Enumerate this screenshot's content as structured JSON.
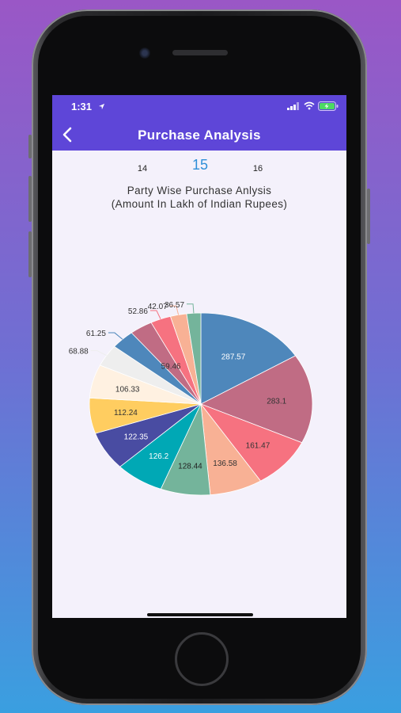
{
  "status_bar": {
    "time": "1:31"
  },
  "header": {
    "title": "Purchase Analysis",
    "back_icon": "chevron-left-icon"
  },
  "selector": {
    "prev": "14",
    "current": "15",
    "next": "16"
  },
  "chart_data": {
    "type": "pie",
    "title": "Party Wise Purchase Anlysis",
    "subtitle": "(Amount In Lakh of Indian Rupees)",
    "values": [
      287.57,
      283.1,
      161.47,
      136.58,
      128.44,
      126.2,
      122.35,
      112.24,
      106.33,
      68.88,
      61.25,
      59.46,
      52.86,
      42.07,
      36.57
    ],
    "labels": [
      "287.57",
      "283.1",
      "161.47",
      "136.58",
      "128.44",
      "126.2",
      "122.35",
      "112.24",
      "106.33",
      "68.88",
      "61.25",
      "59.46",
      "52.86",
      "42.07",
      "36.57"
    ],
    "colors": [
      "#4e87bb",
      "#c06c84",
      "#f67280",
      "#f8b195",
      "#74b49b",
      "#00a8b5",
      "#494ca2",
      "#ffcd60",
      "#fff1e1",
      "#eeeeee",
      "#4e87bb",
      "#c06c84",
      "#f67280",
      "#f8b195",
      "#74b49b"
    ]
  }
}
